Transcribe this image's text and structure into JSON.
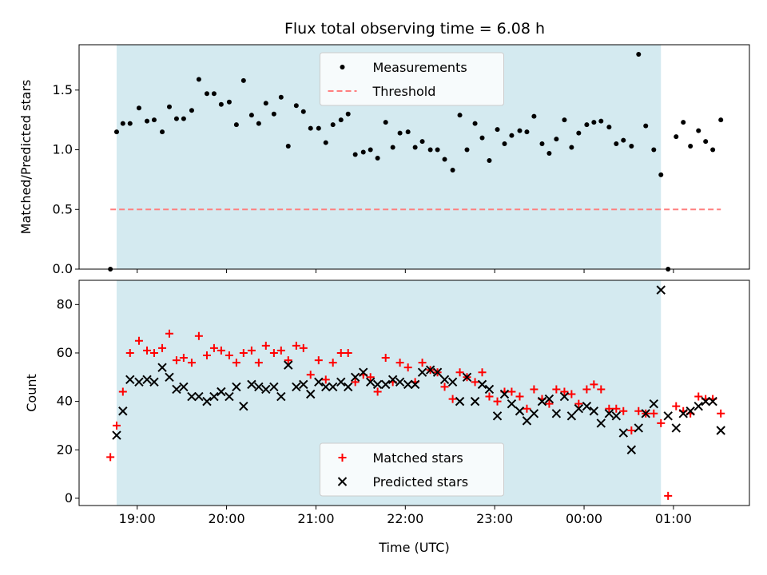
{
  "title": "Flux total observing time = 6.08 h",
  "colors": {
    "measurement": "#000000",
    "threshold": "#ff7f7f",
    "matched": "#ff0000",
    "predicted": "#000000",
    "shading": "#d4eaf0"
  },
  "chart_data": [
    {
      "type": "scatter",
      "ylabel": "Matched/Predicted stars",
      "xlabel": "",
      "ylim": [
        0,
        1.88
      ],
      "yticks": [
        0.0,
        0.5,
        1.0,
        1.5
      ],
      "ytick_labels": [
        "0.0",
        "0.5",
        "1.0",
        "1.5"
      ],
      "observing_window": [
        18.77,
        24.86
      ],
      "legend": {
        "placement": "top-center",
        "entries": [
          "Measurements",
          "Threshold"
        ]
      },
      "series": [
        {
          "name": "Measurements",
          "marker": "dot",
          "x": [
            18.7,
            18.77,
            18.84,
            18.92,
            19.02,
            19.11,
            19.19,
            19.28,
            19.36,
            19.44,
            19.52,
            19.61,
            19.69,
            19.78,
            19.86,
            19.94,
            20.03,
            20.11,
            20.19,
            20.28,
            20.36,
            20.44,
            20.53,
            20.61,
            20.69,
            20.78,
            20.86,
            20.94,
            21.03,
            21.11,
            21.19,
            21.28,
            21.36,
            21.44,
            21.53,
            21.61,
            21.69,
            21.78,
            21.86,
            21.94,
            22.03,
            22.11,
            22.19,
            22.28,
            22.36,
            22.44,
            22.53,
            22.61,
            22.69,
            22.78,
            22.86,
            22.94,
            23.03,
            23.11,
            23.19,
            23.28,
            23.36,
            23.44,
            23.53,
            23.61,
            23.69,
            23.78,
            23.86,
            23.94,
            24.03,
            24.11,
            24.19,
            24.28,
            24.36,
            24.44,
            24.53,
            24.61,
            24.69,
            24.78,
            24.86,
            24.94,
            25.03,
            25.11,
            25.19,
            25.28,
            25.36,
            25.44,
            25.53
          ],
          "y": [
            0.0,
            1.15,
            1.22,
            1.22,
            1.35,
            1.24,
            1.25,
            1.15,
            1.36,
            1.26,
            1.26,
            1.33,
            1.59,
            1.47,
            1.47,
            1.38,
            1.4,
            1.21,
            1.58,
            1.29,
            1.22,
            1.39,
            1.3,
            1.44,
            1.03,
            1.37,
            1.32,
            1.18,
            1.18,
            1.06,
            1.21,
            1.25,
            1.3,
            0.96,
            0.98,
            1.0,
            0.93,
            1.23,
            1.02,
            1.14,
            1.15,
            1.02,
            1.07,
            1.0,
            1.0,
            0.92,
            0.83,
            1.29,
            1.0,
            1.22,
            1.1,
            0.91,
            1.17,
            1.05,
            1.12,
            1.16,
            1.15,
            1.28,
            1.05,
            0.97,
            1.09,
            1.25,
            1.02,
            1.14,
            1.21,
            1.23,
            1.24,
            1.19,
            1.05,
            1.08,
            1.03,
            1.8,
            1.2,
            1.0,
            0.79,
            0.0,
            1.11,
            1.23,
            1.03,
            1.16,
            1.07,
            1.0,
            1.25
          ]
        },
        {
          "name": "Threshold",
          "marker": "dashed-line",
          "x": [
            18.7,
            25.53
          ],
          "y": [
            0.5,
            0.5
          ]
        }
      ]
    },
    {
      "type": "scatter",
      "ylabel": "Count",
      "xlabel": "Time (UTC)",
      "ylim": [
        -3,
        90
      ],
      "yticks": [
        0,
        20,
        40,
        60,
        80
      ],
      "ytick_labels": [
        "0",
        "20",
        "40",
        "60",
        "80"
      ],
      "xlim": [
        18.35,
        25.85
      ],
      "xticks": [
        19,
        20,
        21,
        22,
        23,
        24,
        25
      ],
      "xtick_labels": [
        "19:00",
        "20:00",
        "21:00",
        "22:00",
        "23:00",
        "00:00",
        "01:00"
      ],
      "observing_window": [
        18.77,
        24.86
      ],
      "legend": {
        "placement": "bottom-center",
        "entries": [
          "Matched stars",
          "Predicted stars"
        ]
      },
      "series": [
        {
          "name": "Matched stars",
          "marker": "plus",
          "x": [
            18.7,
            18.77,
            18.84,
            18.92,
            19.02,
            19.11,
            19.19,
            19.28,
            19.36,
            19.44,
            19.52,
            19.61,
            19.69,
            19.78,
            19.86,
            19.94,
            20.03,
            20.11,
            20.19,
            20.28,
            20.36,
            20.44,
            20.53,
            20.61,
            20.69,
            20.78,
            20.86,
            20.94,
            21.03,
            21.11,
            21.19,
            21.28,
            21.36,
            21.44,
            21.53,
            21.61,
            21.69,
            21.78,
            21.86,
            21.94,
            22.03,
            22.11,
            22.19,
            22.28,
            22.36,
            22.44,
            22.53,
            22.61,
            22.69,
            22.78,
            22.86,
            22.94,
            23.03,
            23.11,
            23.19,
            23.28,
            23.36,
            23.44,
            23.53,
            23.61,
            23.69,
            23.78,
            23.86,
            23.94,
            24.03,
            24.11,
            24.19,
            24.28,
            24.36,
            24.44,
            24.53,
            24.61,
            24.69,
            24.78,
            24.86,
            24.94,
            25.03,
            25.11,
            25.19,
            25.28,
            25.36,
            25.44,
            25.53
          ],
          "y": [
            17,
            30,
            44,
            60,
            65,
            61,
            60,
            62,
            68,
            57,
            58,
            56,
            67,
            59,
            62,
            61,
            59,
            56,
            60,
            61,
            56,
            63,
            60,
            61,
            57,
            63,
            62,
            51,
            57,
            49,
            56,
            60,
            60,
            48,
            51,
            50,
            44,
            58,
            48,
            56,
            54,
            48,
            56,
            53,
            52,
            46,
            41,
            52,
            50,
            48,
            52,
            42,
            40,
            44,
            44,
            42,
            37,
            45,
            41,
            39,
            45,
            44,
            43,
            39,
            45,
            47,
            45,
            37,
            37,
            36,
            28,
            36,
            35,
            35,
            31,
            1,
            38,
            36,
            35,
            42,
            41,
            41,
            35
          ]
        },
        {
          "name": "Predicted stars",
          "marker": "cross",
          "x": [
            18.77,
            18.84,
            18.92,
            19.02,
            19.11,
            19.19,
            19.28,
            19.36,
            19.44,
            19.52,
            19.61,
            19.69,
            19.78,
            19.86,
            19.94,
            20.03,
            20.11,
            20.19,
            20.28,
            20.36,
            20.44,
            20.53,
            20.61,
            20.69,
            20.78,
            20.86,
            20.94,
            21.03,
            21.11,
            21.19,
            21.28,
            21.36,
            21.44,
            21.53,
            21.61,
            21.69,
            21.78,
            21.86,
            21.94,
            22.03,
            22.11,
            22.19,
            22.28,
            22.36,
            22.44,
            22.53,
            22.61,
            22.69,
            22.78,
            22.86,
            22.94,
            23.03,
            23.11,
            23.19,
            23.28,
            23.36,
            23.44,
            23.53,
            23.61,
            23.69,
            23.78,
            23.86,
            23.94,
            24.03,
            24.11,
            24.19,
            24.28,
            24.36,
            24.44,
            24.53,
            24.61,
            24.69,
            24.78,
            24.86,
            24.94,
            25.03,
            25.11,
            25.19,
            25.28,
            25.36,
            25.44,
            25.53
          ],
          "y": [
            26,
            36,
            49,
            48,
            49,
            48,
            54,
            50,
            45,
            46,
            42,
            42,
            40,
            42,
            44,
            42,
            46,
            38,
            47,
            46,
            45,
            46,
            42,
            55,
            46,
            47,
            43,
            48,
            46,
            46,
            48,
            46,
            50,
            52,
            48,
            47,
            47,
            49,
            48,
            47,
            47,
            52,
            53,
            52,
            49,
            48,
            40,
            50,
            40,
            47,
            45,
            34,
            43,
            39,
            36,
            32,
            35,
            40,
            41,
            35,
            42,
            34,
            37,
            38,
            36,
            31,
            35,
            34,
            27,
            20,
            29,
            35,
            39,
            86,
            34,
            29,
            35,
            36,
            38,
            40,
            40,
            28
          ]
        }
      ]
    }
  ]
}
